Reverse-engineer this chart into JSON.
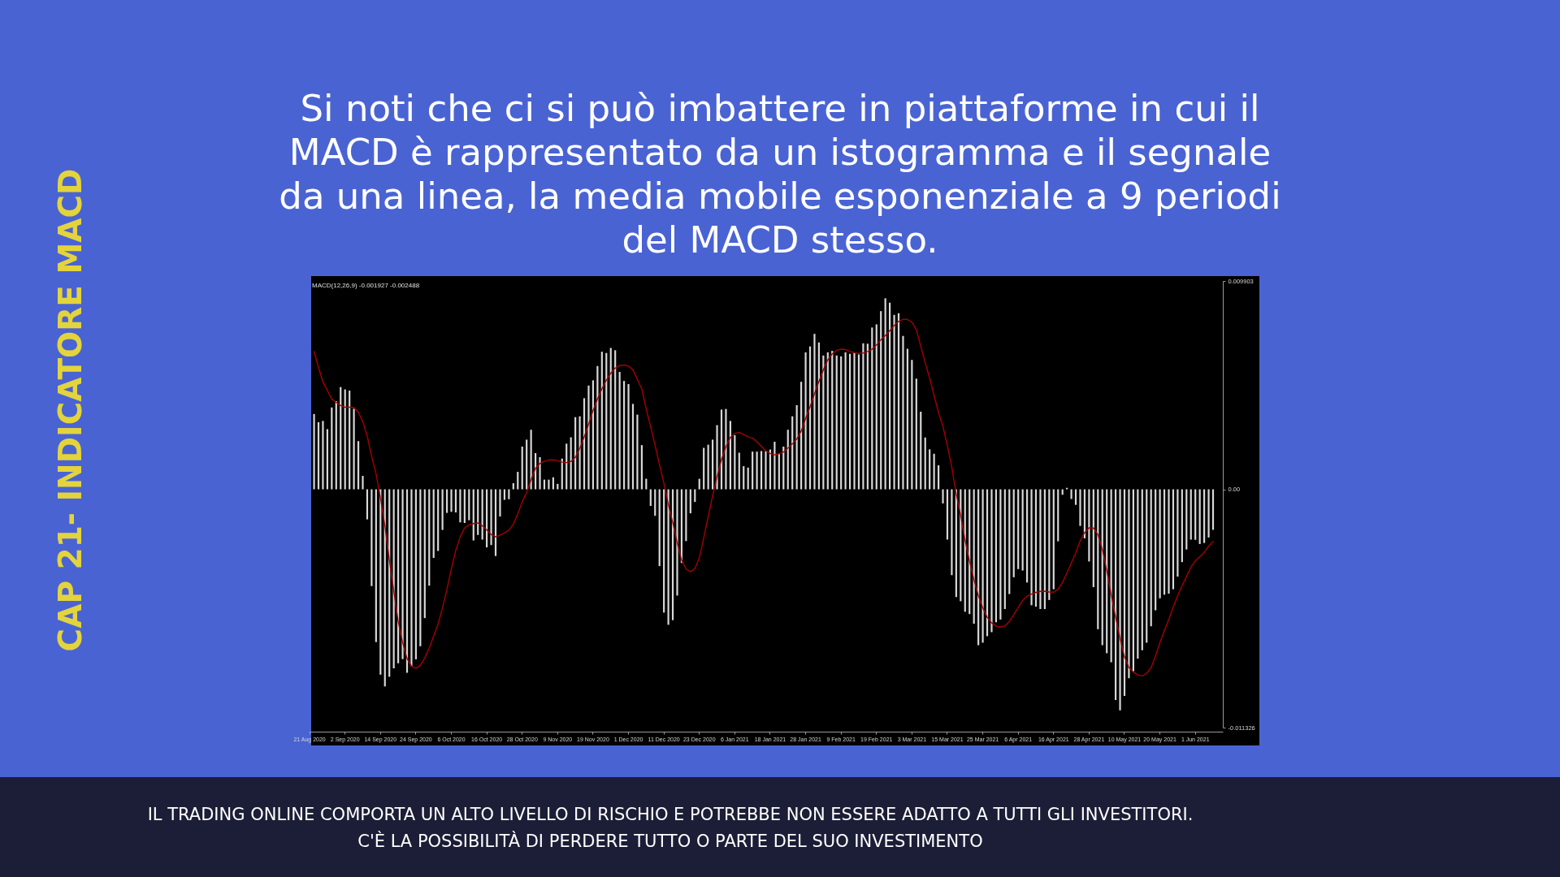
{
  "chart_data": {
    "type": "bar",
    "title": "Si noti che ci si può imbattere in piattaforme in cui il\nMACD è rappresentato da un istogramma e il segnale\nda una linea, la media mobile esponenziale a 9 periodi\ndel MACD stesso.",
    "annotations": [
      "CAP 21- INDICATORE MACD",
      "MACD(12,26,9) -0.001927 -0.002488",
      "IL TRADING ONLINE COMPORTA UN ALTO LIVELLO DI RISCHIO E POTREBBE NON ESSERE ADATTO A TUTTI GLI INVESTITORI.",
      "C'È LA POSSIBILITÀ DI PERDERE TUTTO O PARTE DEL SUO INVESTIMENTO"
    ],
    "categories": [
      "21 Aug 2020",
      null,
      null,
      null,
      null,
      null,
      null,
      null,
      "2 Sep 2020",
      null,
      null,
      null,
      null,
      null,
      null,
      null,
      "14 Sep 2020",
      null,
      null,
      null,
      null,
      null,
      null,
      null,
      "24 Sep 2020",
      null,
      null,
      null,
      null,
      null,
      null,
      null,
      "6 Oct 2020",
      null,
      null,
      null,
      null,
      null,
      null,
      null,
      "16 Oct 2020",
      null,
      null,
      null,
      null,
      null,
      null,
      null,
      "28 Oct 2020",
      null,
      null,
      null,
      null,
      null,
      null,
      null,
      "9 Nov 2020",
      null,
      null,
      null,
      null,
      null,
      null,
      null,
      "19 Nov 2020",
      null,
      null,
      null,
      null,
      null,
      null,
      null,
      "1 Dec 2020",
      null,
      null,
      null,
      null,
      null,
      null,
      null,
      "11 Dec 2020",
      null,
      null,
      null,
      null,
      null,
      null,
      null,
      "23 Dec 2020",
      null,
      null,
      null,
      null,
      null,
      null,
      null,
      "6 Jan 2021",
      null,
      null,
      null,
      null,
      null,
      null,
      null,
      "18 Jan 2021",
      null,
      null,
      null,
      null,
      null,
      null,
      null,
      "28 Jan 2021",
      null,
      null,
      null,
      null,
      null,
      null,
      null,
      "9 Feb 2021",
      null,
      null,
      null,
      null,
      null,
      null,
      null,
      "19 Feb 2021",
      null,
      null,
      null,
      null,
      null,
      null,
      null,
      "3 Mar 2021",
      null,
      null,
      null,
      null,
      null,
      null,
      null,
      "15 Mar 2021",
      null,
      null,
      null,
      null,
      null,
      null,
      null,
      "25 Mar 2021",
      null,
      null,
      null,
      null,
      null,
      null,
      null,
      "6 Apr 2021",
      null,
      null,
      null,
      null,
      null,
      null,
      null,
      "16 Apr 2021",
      null,
      null,
      null,
      null,
      null,
      null,
      null,
      "28 Apr 2021",
      null,
      null,
      null,
      null,
      null,
      null,
      null,
      "10 May 2021",
      null,
      null,
      null,
      null,
      null,
      null,
      null,
      "20 May 2021",
      null,
      null,
      null,
      null,
      null,
      null,
      null,
      "1 Jun 2021",
      null,
      null,
      null,
      null
    ],
    "series": [
      {
        "color": "#d8d8d8",
        "values": [
          null,
          0.00358,
          0.00319,
          0.00325,
          0.00286,
          0.00389,
          0.00419,
          0.00486,
          0.00475,
          0.00469,
          0.00383,
          0.00229,
          0.00064,
          -0.00143,
          -0.0046,
          -0.00726,
          -0.00881,
          -0.00937,
          -0.00891,
          -0.00851,
          -0.00827,
          -0.00807,
          -0.00872,
          -0.00841,
          -0.00808,
          -0.00746,
          -0.00612,
          -0.00458,
          -0.00326,
          -0.00293,
          -0.00193,
          -0.00112,
          -0.00107,
          -0.0011,
          -0.00157,
          -0.0016,
          -0.00147,
          -0.00243,
          -0.00217,
          -0.00239,
          -0.00276,
          -0.00265,
          -0.00317,
          -0.00129,
          -0.0005,
          -0.00047,
          0.00029,
          0.00083,
          0.00203,
          0.00236,
          0.00283,
          0.00172,
          0.00153,
          0.00046,
          0.00046,
          0.00057,
          0.00026,
          0.00146,
          0.00217,
          0.00247,
          0.00343,
          0.00347,
          0.00433,
          0.00493,
          0.00518,
          0.00586,
          0.00654,
          0.00648,
          0.00672,
          0.00661,
          0.00558,
          0.00515,
          0.005,
          0.00406,
          0.00355,
          0.0021,
          0.0005,
          -0.00079,
          -0.00126,
          -0.00365,
          -0.00586,
          -0.00644,
          -0.00622,
          -0.00505,
          -0.0035,
          -0.00246,
          -0.00114,
          -0.0006,
          0.0005,
          0.00197,
          0.00212,
          0.00236,
          0.00305,
          0.00379,
          0.00382,
          0.00325,
          0.00257,
          0.00174,
          0.0011,
          0.00103,
          0.00179,
          0.00179,
          0.00182,
          0.00182,
          0.00189,
          0.00226,
          0.00172,
          0.00203,
          0.00283,
          0.00347,
          0.004,
          0.00511,
          0.00651,
          0.00679,
          0.00739,
          0.00698,
          0.00636,
          0.00651,
          0.00658,
          0.00636,
          0.00632,
          0.00651,
          0.00644,
          0.00651,
          0.00641,
          0.00694,
          0.00692,
          0.00769,
          0.00784,
          0.00847,
          0.00908,
          0.00887,
          0.00829,
          0.00837,
          0.00729,
          0.00668,
          0.00615,
          0.00526,
          0.00369,
          0.00246,
          0.0019,
          0.00169,
          0.00114,
          -0.00067,
          -0.00239,
          -0.00408,
          -0.00512,
          -0.00532,
          -0.00582,
          -0.00593,
          -0.00639,
          -0.00741,
          -0.00729,
          -0.00698,
          -0.00679,
          -0.00632,
          -0.00619,
          -0.00569,
          -0.00498,
          -0.00418,
          -0.00379,
          -0.00386,
          -0.00443,
          -0.00551,
          -0.00558,
          -0.00569,
          -0.00569,
          -0.00526,
          -0.00475,
          -0.00247,
          -0.00026,
          7e-05,
          -0.00046,
          -0.00074,
          -0.00174,
          -0.00233,
          -0.00343,
          -0.00465,
          -0.00665,
          -0.00741,
          -0.00779,
          -0.00822,
          -0.01001,
          -0.01051,
          -0.00982,
          -0.00898,
          -0.00865,
          -0.00805,
          -0.00765,
          -0.00729,
          -0.00651,
          -0.00575,
          -0.00518,
          -0.00501,
          -0.00496,
          -0.00475,
          -0.00415,
          -0.00346,
          -0.00286,
          -0.00239,
          -0.0024,
          -0.0026,
          -0.00255,
          -0.00229,
          -0.001927
        ]
      },
      {
        "type": "line",
        "color": "#a50000",
        "values": [
          null,
          0.00655,
          0.00579,
          0.00511,
          0.00469,
          0.00429,
          0.00413,
          0.00398,
          0.0039,
          0.0039,
          0.00389,
          0.00366,
          0.00322,
          0.00253,
          0.00157,
          0.00073,
          -0.00043,
          -0.00174,
          -0.00336,
          -0.00483,
          -0.00629,
          -0.00728,
          -0.00805,
          -0.00841,
          -0.00851,
          -0.00837,
          -0.00801,
          -0.00754,
          -0.00698,
          -0.00641,
          -0.00563,
          -0.00476,
          -0.00379,
          -0.0029,
          -0.00226,
          -0.00183,
          -0.00169,
          -0.00163,
          -0.0016,
          -0.00173,
          -0.00193,
          -0.00215,
          -0.00226,
          -0.00217,
          -0.00207,
          -0.00194,
          -0.00166,
          -0.00117,
          -0.0006,
          -0.00014,
          0.00046,
          0.001,
          0.00123,
          0.00133,
          0.00139,
          0.0014,
          0.00136,
          0.00129,
          0.00127,
          0.00132,
          0.00152,
          0.00194,
          0.00249,
          0.0031,
          0.00375,
          0.0043,
          0.00478,
          0.00519,
          0.00552,
          0.00576,
          0.00588,
          0.00591,
          0.00585,
          0.00568,
          0.00523,
          0.00476,
          0.00383,
          0.00297,
          0.0021,
          0.00117,
          0.00029,
          -0.00072,
          -0.00159,
          -0.00255,
          -0.00337,
          -0.00379,
          -0.00392,
          -0.00376,
          -0.00326,
          -0.0023,
          -0.0013,
          -0.0003,
          0.0006,
          0.00142,
          0.00203,
          0.00246,
          0.00266,
          0.0027,
          0.0026,
          0.0025,
          0.00243,
          0.00226,
          0.00204,
          0.00183,
          0.0017,
          0.00164,
          0.00169,
          0.00177,
          0.00196,
          0.00216,
          0.00239,
          0.00277,
          0.00337,
          0.00392,
          0.00455,
          0.00513,
          0.00568,
          0.00615,
          0.00644,
          0.00661,
          0.00666,
          0.00664,
          0.00656,
          0.00649,
          0.00646,
          0.00648,
          0.00655,
          0.00666,
          0.00686,
          0.00711,
          0.00731,
          0.00754,
          0.00779,
          0.00798,
          0.00808,
          0.00807,
          0.00794,
          0.00758,
          0.00679,
          0.00601,
          0.00529,
          0.00446,
          0.00365,
          0.003,
          0.00207,
          0.00106,
          -0.00023,
          -0.00123,
          -0.00242,
          -0.00342,
          -0.00429,
          -0.00505,
          -0.00563,
          -0.00608,
          -0.00635,
          -0.00651,
          -0.00655,
          -0.00649,
          -0.00628,
          -0.00596,
          -0.00562,
          -0.00529,
          -0.00508,
          -0.00498,
          -0.0049,
          -0.00485,
          -0.00484,
          -0.00488,
          -0.00489,
          -0.00475,
          -0.00442,
          -0.00398,
          -0.0035,
          -0.00302,
          -0.00245,
          -0.00206,
          -0.00183,
          -0.00184,
          -0.00215,
          -0.00286,
          -0.00386,
          -0.00501,
          -0.00608,
          -0.00709,
          -0.00797,
          -0.00847,
          -0.00869,
          -0.00882,
          -0.00887,
          -0.00875,
          -0.00848,
          -0.00792,
          -0.00728,
          -0.00672,
          -0.00619,
          -0.00559,
          -0.00506,
          -0.00458,
          -0.00415,
          -0.0037,
          -0.0034,
          -0.0032,
          -0.003,
          -0.0027,
          -0.002488
        ]
      }
    ],
    "ylim": [
      -0.011326,
      0.009903
    ],
    "yticks": [
      -0.011326,
      {
        "value": 0,
        "label": "0.00"
      },
      0.009903
    ]
  }
}
